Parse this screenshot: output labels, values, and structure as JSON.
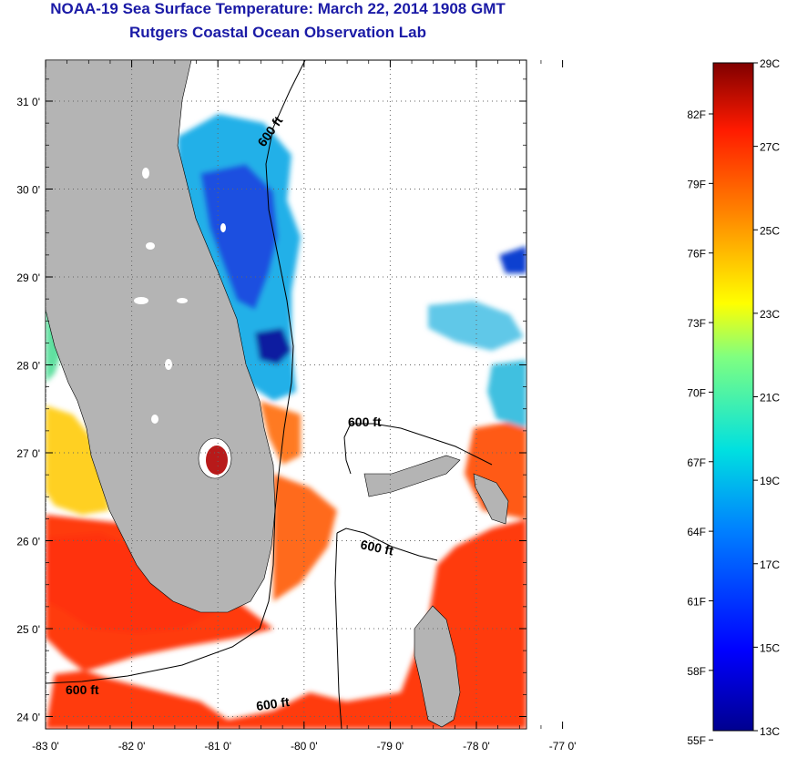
{
  "header": {
    "title": "NOAA-19 Sea Surface Temperature:  March 22, 2014 1908 GMT",
    "subtitle": "Rutgers Coastal Ocean Observation Lab"
  },
  "map": {
    "lat_ticks": [
      {
        "value": 31,
        "label": "31 0'"
      },
      {
        "value": 30,
        "label": "30 0'"
      },
      {
        "value": 29,
        "label": "29 0'"
      },
      {
        "value": 28,
        "label": "28 0'"
      },
      {
        "value": 27,
        "label": "27 0'"
      },
      {
        "value": 26,
        "label": "26 0'"
      },
      {
        "value": 25,
        "label": "25 0'"
      },
      {
        "value": 24,
        "label": "24 0'"
      }
    ],
    "lon_ticks": [
      {
        "value": -83,
        "label": "-83 0'"
      },
      {
        "value": -82,
        "label": "-82 0'"
      },
      {
        "value": -81,
        "label": "-81 0'"
      },
      {
        "value": -80,
        "label": "-80 0'"
      },
      {
        "value": -79,
        "label": "-79 0'"
      },
      {
        "value": -78,
        "label": "-78 0'"
      },
      {
        "value": -77,
        "label": "-77 0'"
      }
    ],
    "contour_labels": [
      {
        "id": "north",
        "text": "600 ft"
      },
      {
        "id": "bahama-bank",
        "text": "600 ft"
      },
      {
        "id": "straits",
        "text": "600 ft"
      },
      {
        "id": "gulf",
        "text": "600 ft"
      },
      {
        "id": "south",
        "text": "600 ft"
      }
    ],
    "colors": {
      "land": "#b4b4b4",
      "no_data": "#ffffff",
      "grid": "#666666"
    }
  },
  "colorbar": {
    "celsius_ticks": [
      {
        "value": 29,
        "label": "29C"
      },
      {
        "value": 27,
        "label": "27C"
      },
      {
        "value": 25,
        "label": "25C"
      },
      {
        "value": 23,
        "label": "23C"
      },
      {
        "value": 21,
        "label": "21C"
      },
      {
        "value": 19,
        "label": "19C"
      },
      {
        "value": 17,
        "label": "17C"
      },
      {
        "value": 15,
        "label": "15C"
      },
      {
        "value": 13,
        "label": "13C"
      }
    ],
    "fahrenheit_ticks": [
      {
        "value": 82,
        "label": "82F"
      },
      {
        "value": 79,
        "label": "79F"
      },
      {
        "value": 76,
        "label": "76F"
      },
      {
        "value": 73,
        "label": "73F"
      },
      {
        "value": 70,
        "label": "70F"
      },
      {
        "value": 67,
        "label": "67F"
      },
      {
        "value": 64,
        "label": "64F"
      },
      {
        "value": 61,
        "label": "61F"
      },
      {
        "value": 58,
        "label": "58F"
      },
      {
        "value": 55,
        "label": "55F"
      }
    ]
  }
}
